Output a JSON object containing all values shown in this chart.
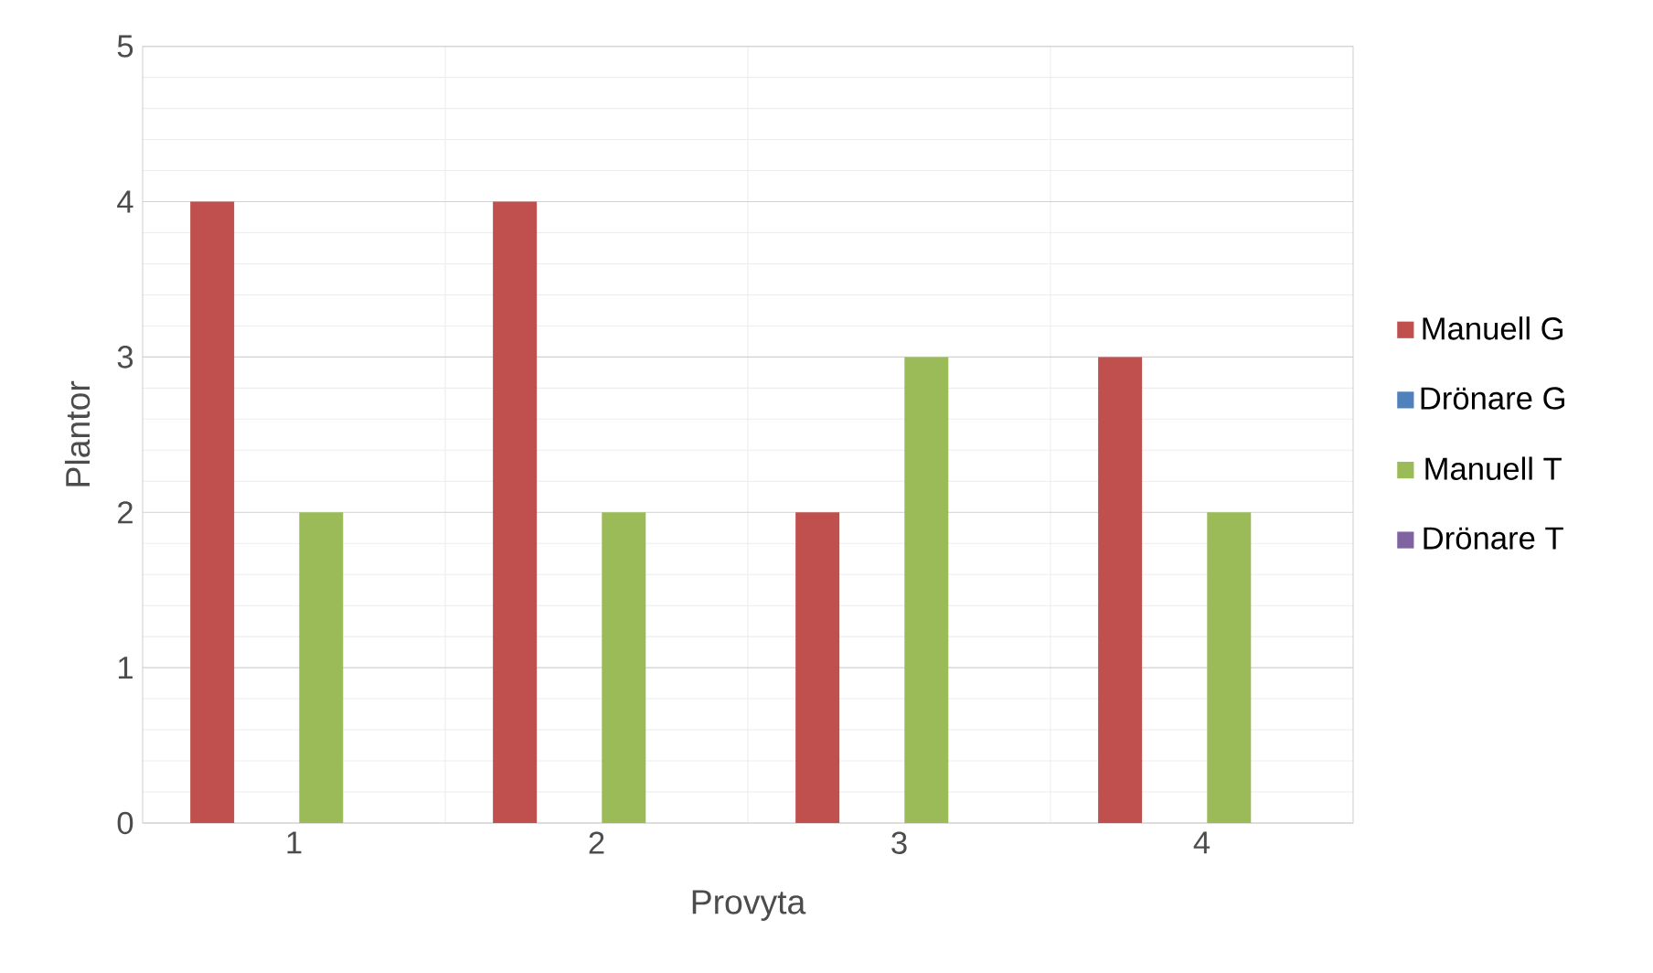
{
  "chart_data": {
    "type": "bar",
    "xlabel": "Provyta",
    "ylabel": "Plantor",
    "categories": [
      "1",
      "2",
      "3",
      "4"
    ],
    "series": [
      {
        "name": "Manuell G",
        "color": "#c0504d",
        "values": [
          4,
          4,
          2,
          3
        ]
      },
      {
        "name": "Drönare G",
        "color": "#4f81bd",
        "values": [
          0,
          0,
          0,
          0
        ]
      },
      {
        "name": "Manuell T",
        "color": "#9bbb59",
        "values": [
          2,
          2,
          3,
          2
        ]
      },
      {
        "name": "Drönare T",
        "color": "#8064a2",
        "values": [
          0,
          0,
          0,
          0
        ]
      }
    ],
    "ylim": [
      0,
      5
    ],
    "yticks": [
      0,
      1,
      2,
      3,
      4,
      5
    ],
    "grid": true,
    "legend": "right"
  }
}
